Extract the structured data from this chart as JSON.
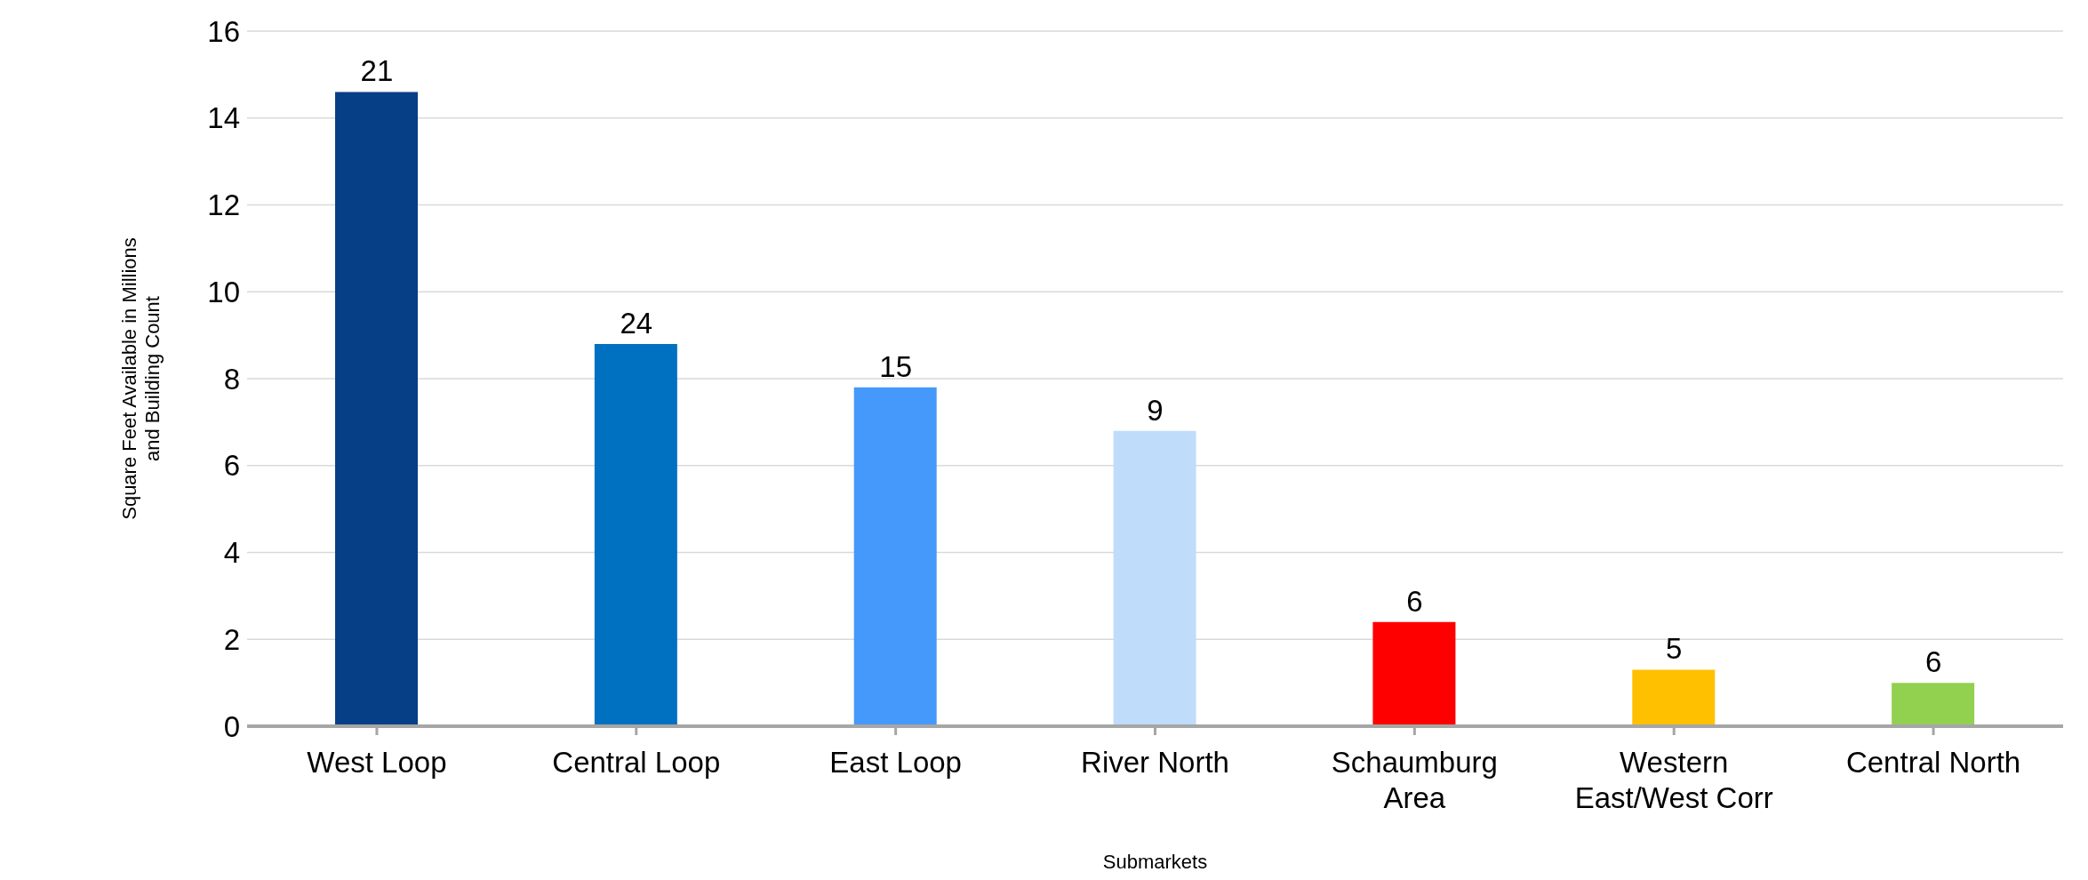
{
  "chart_data": {
    "type": "bar",
    "xlabel": "Submarkets",
    "ylabel": "Square Feet Available in Millions\nand Building Count",
    "categories": [
      "West Loop",
      "Central Loop",
      "East Loop",
      "River North",
      "Schaumburg\nArea",
      "Western\nEast/West Corr",
      "Central North"
    ],
    "values": [
      14.6,
      8.8,
      7.8,
      6.8,
      2.4,
      1.3,
      1.0
    ],
    "colors": [
      "#073f87",
      "#0070c0",
      "#4499fa",
      "#c0dcfb",
      "#ff0000",
      "#ffc000",
      "#92d050"
    ],
    "annotations": [
      {
        "text": "21",
        "x": "West Loop",
        "y": 14.6
      },
      {
        "text": "24",
        "x": "Central Loop",
        "y": 8.8
      },
      {
        "text": "15",
        "x": "East Loop",
        "y": 7.8
      },
      {
        "text": "9",
        "x": "River North",
        "y": 6.8
      },
      {
        "text": "6",
        "x": "Schaumburg\nArea",
        "y": 2.4
      },
      {
        "text": "5",
        "x": "Western\nEast/West Corr",
        "y": 1.3
      },
      {
        "text": "6",
        "x": "Central North",
        "y": 1.0
      }
    ],
    "ylim": [
      0,
      16
    ],
    "yticks": [
      0,
      2,
      4,
      6,
      8,
      10,
      12,
      14,
      16
    ],
    "grid": "y",
    "legend": false
  }
}
